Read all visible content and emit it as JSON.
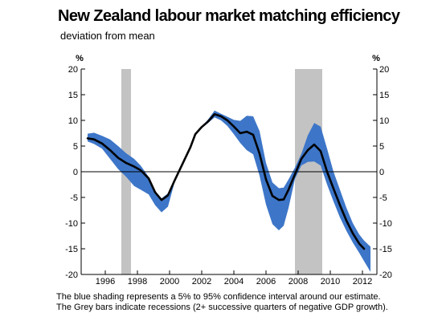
{
  "chart_data": {
    "type": "line",
    "title": "New Zealand labour market matching efficiency",
    "subtitle": "deviation from mean",
    "y_unit_left": "%",
    "y_unit_right": "%",
    "ylim": [
      -20,
      20
    ],
    "xlim": [
      1994.5,
      2012.9
    ],
    "yticks": [
      20,
      15,
      10,
      5,
      0,
      -5,
      -10,
      -15,
      -20
    ],
    "xticks": [
      1996,
      1998,
      2000,
      2002,
      2004,
      2006,
      2008,
      2010,
      2012
    ],
    "grid": false,
    "zero_line": true,
    "series": [
      {
        "type": "line",
        "x": [
          1994.9,
          1995.3,
          1995.8,
          1996.3,
          1996.8,
          1997.3,
          1997.8,
          1998.2,
          1998.7,
          1999.1,
          1999.5,
          1999.9,
          2000.3,
          2000.8,
          2001.3,
          2001.6,
          2002.0,
          2002.4,
          2002.8,
          2003.2,
          2003.6,
          2004.0,
          2004.4,
          2004.8,
          2005.2,
          2005.6,
          2006.0,
          2006.4,
          2006.8,
          2007.1,
          2007.4,
          2007.8,
          2008.2,
          2008.6,
          2009.0,
          2009.4,
          2009.8,
          2010.2,
          2010.6,
          2011.0,
          2011.4,
          2011.8,
          2012.1
        ],
        "values": [
          6.5,
          6.3,
          5.5,
          4.2,
          2.7,
          1.7,
          1.0,
          0.3,
          -1.3,
          -4.0,
          -5.5,
          -4.6,
          -1.8,
          1.5,
          4.8,
          7.3,
          8.7,
          9.8,
          11.2,
          10.8,
          10.0,
          8.8,
          7.5,
          7.8,
          7.2,
          3.5,
          -1.5,
          -4.7,
          -5.5,
          -5.4,
          -3.5,
          -0.5,
          2.5,
          4.2,
          5.3,
          4.0,
          0.0,
          -3.3,
          -6.5,
          -9.5,
          -12.0,
          -14.0,
          -15.0
        ]
      },
      {
        "type": "band",
        "x": [
          1994.9,
          1995.3,
          1995.8,
          1996.3,
          1996.8,
          1997.3,
          1997.8,
          1998.2,
          1998.7,
          1999.1,
          1999.5,
          1999.9,
          2000.3,
          2000.8,
          2001.3,
          2001.6,
          2002.0,
          2002.4,
          2002.8,
          2003.2,
          2003.6,
          2004.0,
          2004.4,
          2004.8,
          2005.2,
          2005.6,
          2006.0,
          2006.4,
          2006.8,
          2007.1,
          2007.4,
          2007.8,
          2008.2,
          2008.6,
          2009.0,
          2009.4,
          2009.8,
          2010.2,
          2010.6,
          2011.0,
          2011.4,
          2011.8,
          2012.1,
          2012.5
        ],
        "upper": [
          7.4,
          7.6,
          7.0,
          6.3,
          5.0,
          3.6,
          2.5,
          1.2,
          -1.0,
          -3.8,
          -5.2,
          -4.2,
          -1.5,
          1.8,
          5.0,
          7.5,
          8.8,
          10.2,
          11.9,
          11.3,
          10.7,
          10.1,
          9.9,
          10.9,
          10.8,
          7.9,
          1.7,
          -2.1,
          -3.2,
          -3.1,
          -1.5,
          0.8,
          3.5,
          7.1,
          9.5,
          8.8,
          4.5,
          0.0,
          -3.5,
          -7.0,
          -10.0,
          -12.2,
          -13.4,
          -14.6
        ],
        "lower": [
          5.9,
          5.4,
          4.5,
          2.5,
          0.5,
          -1.0,
          -2.8,
          -3.5,
          -4.4,
          -6.5,
          -7.9,
          -6.8,
          -2.2,
          1.1,
          4.6,
          7.1,
          8.5,
          9.5,
          10.6,
          10.0,
          8.9,
          7.3,
          5.6,
          4.2,
          3.4,
          -0.8,
          -6.4,
          -10.2,
          -11.4,
          -10.5,
          -7.1,
          -1.4,
          1.2,
          1.9,
          2.0,
          1.2,
          -2.5,
          -5.8,
          -8.9,
          -11.5,
          -13.8,
          -15.8,
          -17.4,
          -19.5
        ]
      },
      {
        "type": "recession",
        "ranges": [
          [
            1997.0,
            1997.6
          ],
          [
            2007.8,
            2009.5
          ]
        ]
      }
    ],
    "colors": {
      "band": "#3d76c8",
      "line": "#000000",
      "recession": "#c3c3c3",
      "axis": "#000000"
    }
  },
  "footnote": {
    "line1": "The blue shading represents a 5% to 95% confidence interval around our estimate.",
    "line2": "The Grey bars indicate recessions (2+ successive quarters of negative GDP growth)."
  }
}
